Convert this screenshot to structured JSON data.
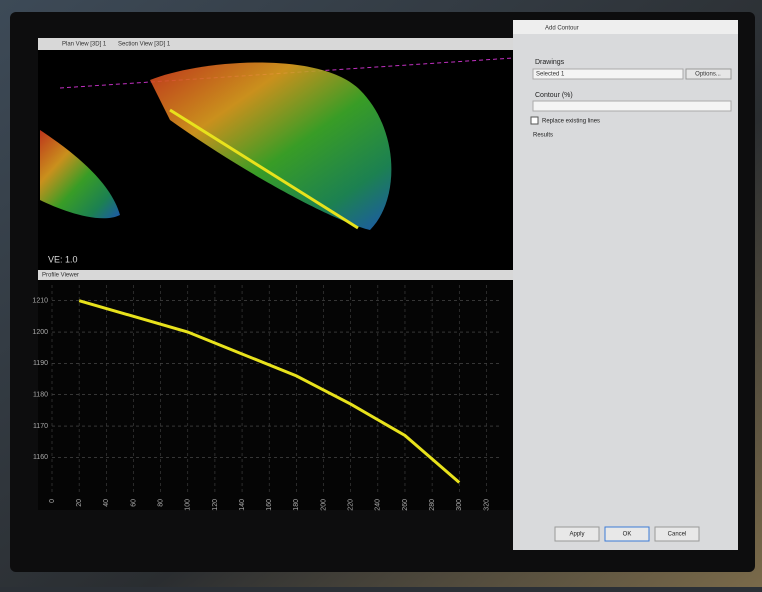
{
  "tabs": [
    "Plan View [3D] 1",
    "Section View [3D] 1"
  ],
  "view": {
    "scale_label": "VE: 1.0"
  },
  "profile": {
    "title": "Profile Viewer",
    "x": [
      20,
      60,
      100,
      140,
      180,
      220,
      260,
      300
    ],
    "y": [
      1210,
      1205,
      1200,
      1193,
      1186,
      1177,
      1167,
      1152
    ],
    "xlim": [
      0,
      330
    ],
    "ylim": [
      1148,
      1215
    ],
    "xticks": [
      0,
      20,
      40,
      60,
      80,
      100,
      120,
      140,
      160,
      180,
      200,
      220,
      240,
      260,
      280,
      300,
      320
    ],
    "yticks": [
      1160,
      1170,
      1180,
      1190,
      1200,
      1210
    ],
    "color": "#e8e21c",
    "grid": true
  },
  "panel": {
    "title": "Add Contour",
    "section": "Drawings",
    "field": "Selected 1",
    "options_button": "Options...",
    "contour_label": "Contour (%)",
    "checkbox": "Replace existing lines",
    "results_label": "Results",
    "buttons": [
      "Apply",
      "OK",
      "Cancel"
    ]
  }
}
